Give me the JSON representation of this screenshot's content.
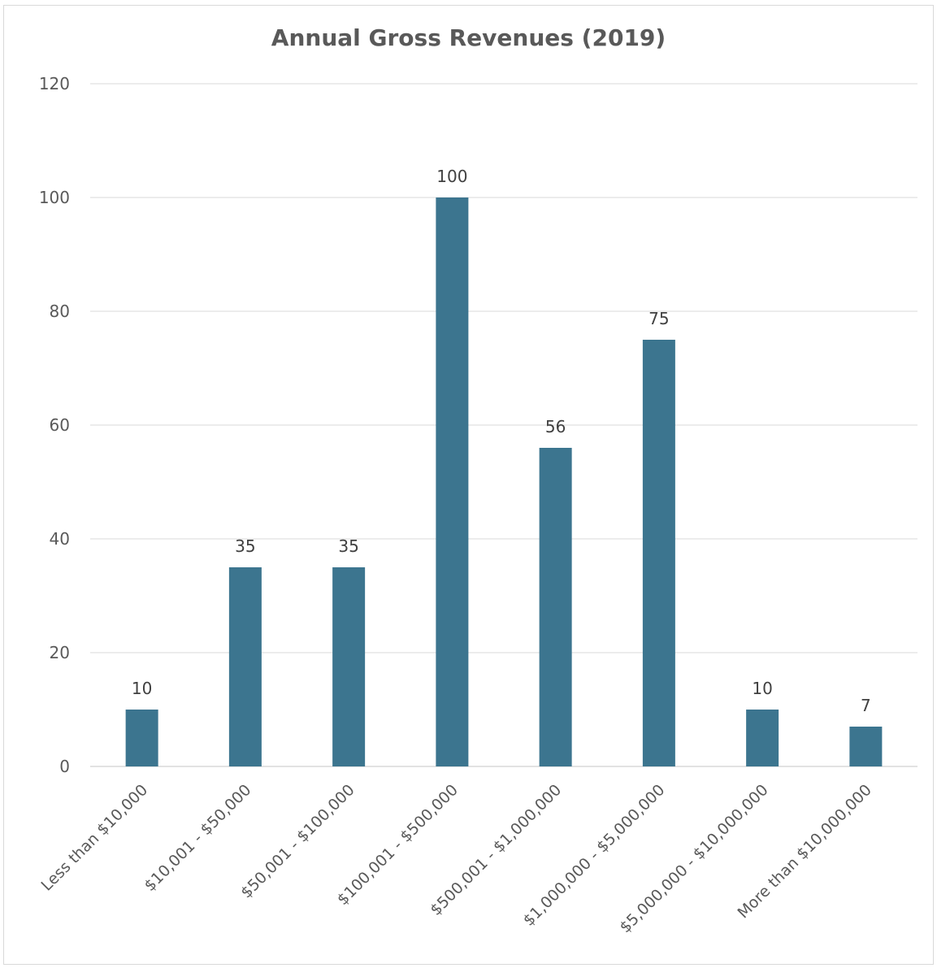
{
  "chart_data": {
    "type": "bar",
    "title": "Annual Gross Revenues (2019)",
    "categories": [
      "Less than $10,000",
      "$10,001 - $50,000",
      "$50,001 - $100,000",
      "$100,001 - $500,000",
      "$500,001 - $1,000,000",
      "$1,000,000 - $5,000,000",
      "$5,000,000 - $10,000,000",
      "More than $10,000,000"
    ],
    "values": [
      10,
      35,
      35,
      100,
      56,
      75,
      10,
      7
    ],
    "ylim": [
      0,
      120
    ],
    "yticks": [
      "0",
      "20",
      "40",
      "60",
      "80",
      "100",
      "120"
    ],
    "grid": true,
    "legend": "none",
    "bar_color": "#3c758f",
    "gridline_color": "#d9d9d9"
  }
}
